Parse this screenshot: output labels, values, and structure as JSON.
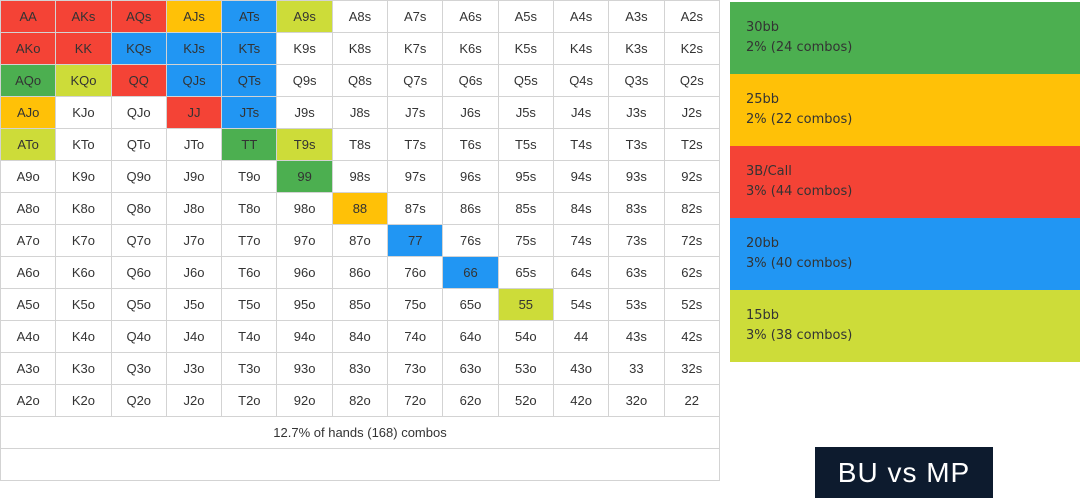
{
  "colors": {
    "red": "#f44336",
    "orange": "#ffc107",
    "green": "#4caf50",
    "blue": "#2196f3",
    "lime": "#cddc39",
    "badge_bg": "#0d1b2e"
  },
  "grid": {
    "rows": [
      [
        "AA",
        "AKs",
        "AQs",
        "AJs",
        "ATs",
        "A9s",
        "A8s",
        "A7s",
        "A6s",
        "A5s",
        "A4s",
        "A3s",
        "A2s"
      ],
      [
        "AKo",
        "KK",
        "KQs",
        "KJs",
        "KTs",
        "K9s",
        "K8s",
        "K7s",
        "K6s",
        "K5s",
        "K4s",
        "K3s",
        "K2s"
      ],
      [
        "AQo",
        "KQo",
        "QQ",
        "QJs",
        "QTs",
        "Q9s",
        "Q8s",
        "Q7s",
        "Q6s",
        "Q5s",
        "Q4s",
        "Q3s",
        "Q2s"
      ],
      [
        "AJo",
        "KJo",
        "QJo",
        "JJ",
        "JTs",
        "J9s",
        "J8s",
        "J7s",
        "J6s",
        "J5s",
        "J4s",
        "J3s",
        "J2s"
      ],
      [
        "ATo",
        "KTo",
        "QTo",
        "JTo",
        "TT",
        "T9s",
        "T8s",
        "T7s",
        "T6s",
        "T5s",
        "T4s",
        "T3s",
        "T2s"
      ],
      [
        "A9o",
        "K9o",
        "Q9o",
        "J9o",
        "T9o",
        "99",
        "98s",
        "97s",
        "96s",
        "95s",
        "94s",
        "93s",
        "92s"
      ],
      [
        "A8o",
        "K8o",
        "Q8o",
        "J8o",
        "T8o",
        "98o",
        "88",
        "87s",
        "86s",
        "85s",
        "84s",
        "83s",
        "82s"
      ],
      [
        "A7o",
        "K7o",
        "Q7o",
        "J7o",
        "T7o",
        "97o",
        "87o",
        "77",
        "76s",
        "75s",
        "74s",
        "73s",
        "72s"
      ],
      [
        "A6o",
        "K6o",
        "Q6o",
        "J6o",
        "T6o",
        "96o",
        "86o",
        "76o",
        "66",
        "65s",
        "64s",
        "63s",
        "62s"
      ],
      [
        "A5o",
        "K5o",
        "Q5o",
        "J5o",
        "T5o",
        "95o",
        "85o",
        "75o",
        "65o",
        "55",
        "54s",
        "53s",
        "52s"
      ],
      [
        "A4o",
        "K4o",
        "Q4o",
        "J4o",
        "T4o",
        "94o",
        "84o",
        "74o",
        "64o",
        "54o",
        "44",
        "43s",
        "42s"
      ],
      [
        "A3o",
        "K3o",
        "Q3o",
        "J3o",
        "T3o",
        "93o",
        "83o",
        "73o",
        "63o",
        "53o",
        "43o",
        "33",
        "32s"
      ],
      [
        "A2o",
        "K2o",
        "Q2o",
        "J2o",
        "T2o",
        "92o",
        "82o",
        "72o",
        "62o",
        "52o",
        "42o",
        "32o",
        "22"
      ]
    ],
    "highlights": {
      "AA": "red",
      "AKs": "red",
      "AQs": "red",
      "AKo": "red",
      "KK": "red",
      "QQ": "red",
      "JJ": "red",
      "AJs": "orange",
      "AJo": "orange",
      "88": "orange",
      "ATs": "blue",
      "KQs": "blue",
      "KJs": "blue",
      "KTs": "blue",
      "QJs": "blue",
      "QTs": "blue",
      "JTs": "blue",
      "77": "blue",
      "66": "blue",
      "AQo": "green",
      "TT": "green",
      "99": "green",
      "A9s": "lime",
      "KQo": "lime",
      "ATo": "lime",
      "T9s": "lime",
      "55": "lime"
    },
    "summary": "12.7% of hands (168) combos"
  },
  "legend": [
    {
      "label": "30bb",
      "detail": "2% (24 combos)",
      "color": "green"
    },
    {
      "label": "25bb",
      "detail": "2% (22 combos)",
      "color": "orange"
    },
    {
      "label": "3B/Call",
      "detail": "3% (44 combos)",
      "color": "red"
    },
    {
      "label": "20bb",
      "detail": "3% (40 combos)",
      "color": "blue"
    },
    {
      "label": "15bb",
      "detail": "3% (38 combos)",
      "color": "lime"
    }
  ],
  "badge": "BU vs MP"
}
